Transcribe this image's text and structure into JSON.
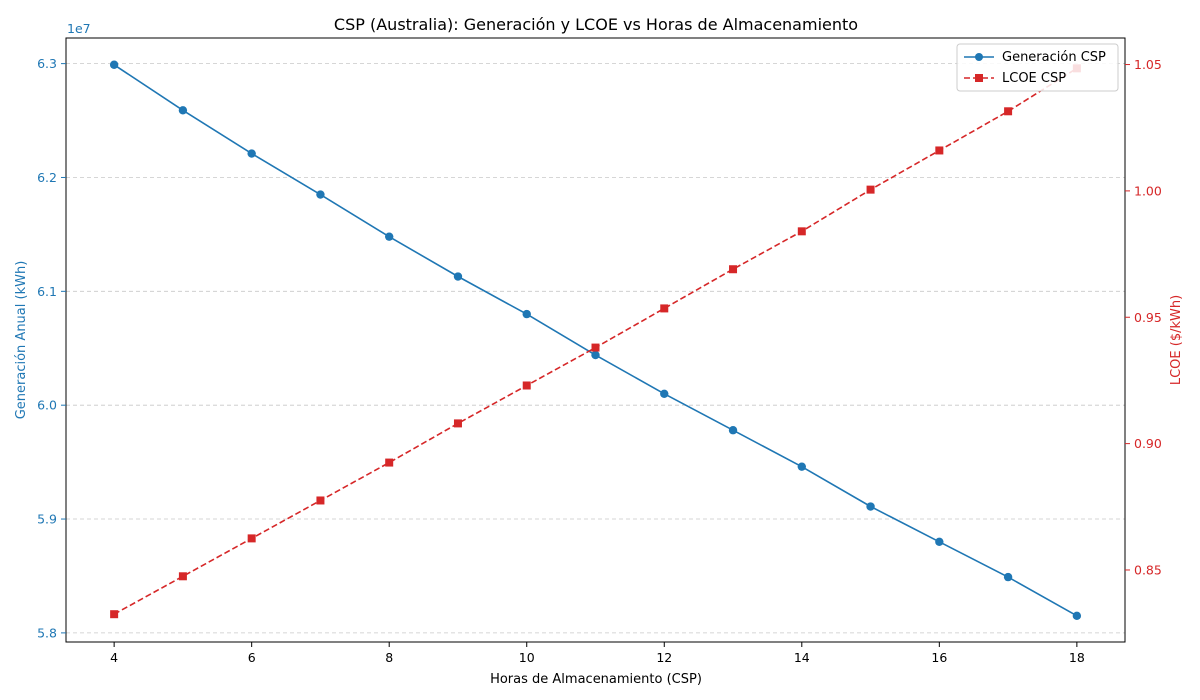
{
  "chart_data": {
    "type": "line",
    "title": "CSP (Australia): Generación y LCOE vs Horas de Almacenamiento",
    "xlabel": "Horas de Almacenamiento (CSP)",
    "ylabel_left": "Generación Anual (kWh)",
    "ylabel_right": "LCOE ($/kWh)",
    "offset_text_left": "1e7",
    "x": [
      4,
      5,
      6,
      7,
      8,
      9,
      10,
      11,
      12,
      13,
      14,
      15,
      16,
      17,
      18
    ],
    "xlim": [
      3.3,
      18.7
    ],
    "x_ticks": [
      4,
      6,
      8,
      10,
      12,
      14,
      16,
      18
    ],
    "ylim_left": [
      5.792,
      6.3225
    ],
    "ylim_right": [
      0.8215,
      1.0605
    ],
    "y_ticks_left": [
      5.8,
      5.9,
      6.0,
      6.1,
      6.2,
      6.3
    ],
    "y_tick_labels_left": [
      "5.8",
      "5.9",
      "6.0",
      "6.1",
      "6.2",
      "6.3"
    ],
    "y_ticks_right": [
      0.85,
      0.9,
      0.95,
      1.0,
      1.05
    ],
    "y_tick_labels_right": [
      "0.85",
      "0.90",
      "0.95",
      "1.00",
      "1.05"
    ],
    "grid": "horizontal dashed",
    "legend_position": "top-right",
    "series": [
      {
        "name": "Generación CSP",
        "axis": "left",
        "color": "#1f77b4",
        "linestyle": "solid",
        "marker": "circle",
        "values": [
          6.299,
          6.259,
          6.221,
          6.185,
          6.148,
          6.113,
          6.08,
          6.044,
          6.01,
          5.978,
          5.946,
          5.911,
          5.88,
          5.849,
          5.815
        ]
      },
      {
        "name": "LCOE CSP",
        "axis": "right",
        "color": "#d62728",
        "linestyle": "dashed",
        "marker": "square",
        "values": [
          0.8325,
          0.8475,
          0.8625,
          0.8775,
          0.8925,
          0.908,
          0.923,
          0.938,
          0.9535,
          0.969,
          0.984,
          1.0005,
          1.016,
          1.0315,
          1.0485
        ]
      }
    ]
  }
}
